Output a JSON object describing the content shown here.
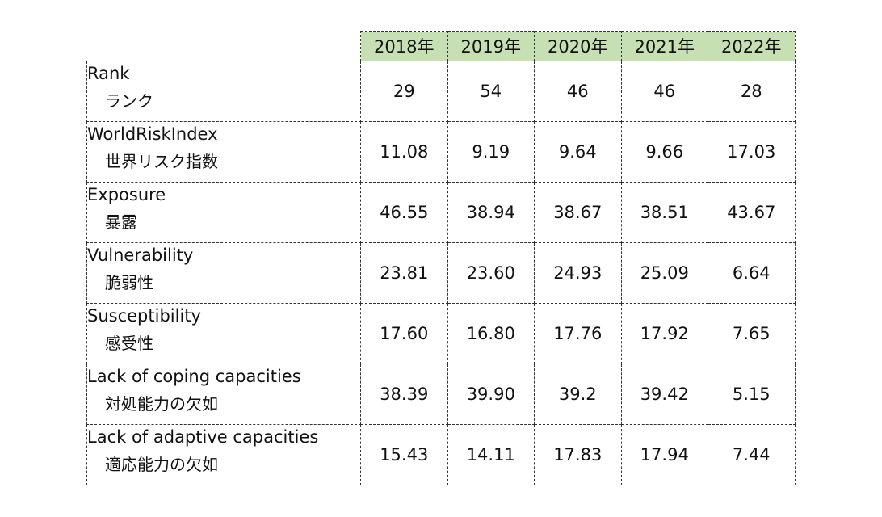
{
  "table": {
    "years": [
      "2018年",
      "2019年",
      "2020年",
      "2021年",
      "2022年"
    ],
    "rows": [
      {
        "label_en": "Rank",
        "label_ja": "ランク",
        "values": [
          "29",
          "54",
          "46",
          "46",
          "28"
        ]
      },
      {
        "label_en": "WorldRiskIndex",
        "label_ja": "世界リスク指数",
        "values": [
          "11.08",
          "9.19",
          "9.64",
          "9.66",
          "17.03"
        ]
      },
      {
        "label_en": "Exposure",
        "label_ja": "暴露",
        "values": [
          "46.55",
          "38.94",
          "38.67",
          "38.51",
          "43.67"
        ]
      },
      {
        "label_en": "Vulnerability",
        "label_ja": "脆弱性",
        "values": [
          "23.81",
          "23.60",
          "24.93",
          "25.09",
          "6.64"
        ]
      },
      {
        "label_en": "Susceptibility",
        "label_ja": "感受性",
        "values": [
          "17.60",
          "16.80",
          "17.76",
          "17.92",
          "7.65"
        ]
      },
      {
        "label_en": "Lack of coping capacities",
        "label_ja": "対処能力の欠如",
        "values": [
          "38.39",
          "39.90",
          "39.2",
          "39.42",
          "5.15"
        ]
      },
      {
        "label_en": "Lack of adaptive capacities",
        "label_ja": "適応能力の欠如",
        "values": [
          "15.43",
          "14.11",
          "17.83",
          "17.94",
          "7.44"
        ]
      }
    ]
  },
  "colors": {
    "header_fill": "#c6e0b4",
    "border": "#333333",
    "text": "#111111"
  }
}
